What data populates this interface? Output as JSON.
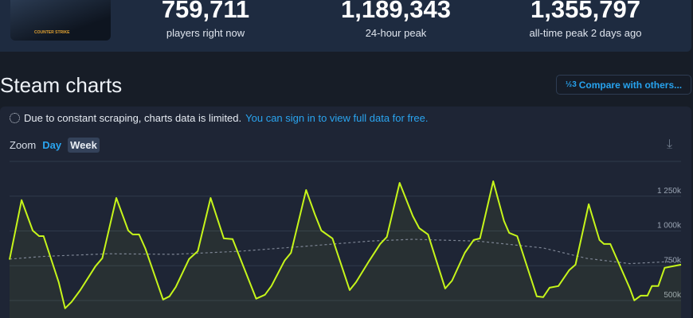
{
  "stats": [
    {
      "value": "759,711",
      "label": "players right now"
    },
    {
      "value": "1,189,343",
      "label": "24-hour peak"
    },
    {
      "value": "1,355,797",
      "label": "all-time peak 2 days ago"
    }
  ],
  "cover": {
    "logo_text": "COUNTER STRIKE"
  },
  "section_title": "Steam charts",
  "compare_button": {
    "icon": "fraction-icon",
    "icon_text": "½3",
    "label": "Compare with others..."
  },
  "notice": {
    "text": "Due to constant scraping, charts data is limited.",
    "link": "You can sign in to view full data for free."
  },
  "zoom": {
    "label": "Zoom",
    "options": [
      "Day",
      "Week"
    ],
    "selected": "Week"
  },
  "download_icon": "download-icon",
  "colors": {
    "line": "#c6f51a",
    "average": "#7d8594",
    "accent": "#2aa4ef"
  },
  "chart_data": {
    "type": "line",
    "ylim": [
      500,
      1500
    ],
    "yticks": [
      {
        "v": 1250,
        "label": "1 250k"
      },
      {
        "v": 1000,
        "label": "1 000k"
      },
      {
        "v": 750,
        "label": "750k"
      },
      {
        "v": 500,
        "label": "500k"
      }
    ],
    "grid": true,
    "series": [
      {
        "style": "solid",
        "points": [
          [
            0,
            794
          ],
          [
            3,
            1222
          ],
          [
            5.8,
            1003
          ],
          [
            7.4,
            963
          ],
          [
            8.5,
            963
          ],
          [
            12.3,
            632
          ],
          [
            13.9,
            444
          ],
          [
            15.5,
            490
          ],
          [
            17.7,
            575
          ],
          [
            21.5,
            747
          ],
          [
            23.2,
            804
          ],
          [
            26.7,
            1237
          ],
          [
            29.7,
            1003
          ],
          [
            30.8,
            975
          ],
          [
            32.4,
            975
          ],
          [
            34,
            872
          ],
          [
            38.4,
            507
          ],
          [
            40,
            530
          ],
          [
            41.6,
            598
          ],
          [
            44.9,
            798
          ],
          [
            47.1,
            855
          ],
          [
            50.3,
            1237
          ],
          [
            53.6,
            946
          ],
          [
            55.8,
            941
          ],
          [
            61.7,
            513
          ],
          [
            63.9,
            541
          ],
          [
            65.5,
            604
          ],
          [
            68.8,
            786
          ],
          [
            70.4,
            843
          ],
          [
            74.2,
            1294
          ],
          [
            76.4,
            1118
          ],
          [
            78,
            1003
          ],
          [
            80.8,
            946
          ],
          [
            85.1,
            575
          ],
          [
            86.7,
            632
          ],
          [
            90,
            786
          ],
          [
            92.7,
            906
          ],
          [
            94.4,
            958
          ],
          [
            97.6,
            1346
          ],
          [
            100.9,
            1106
          ],
          [
            102.5,
            1020
          ],
          [
            104.7,
            975
          ],
          [
            109,
            586
          ],
          [
            110.7,
            643
          ],
          [
            113.9,
            843
          ],
          [
            116.1,
            935
          ],
          [
            117.7,
            946
          ],
          [
            121,
            1357
          ],
          [
            123.7,
            1072
          ],
          [
            125,
            986
          ],
          [
            127,
            963
          ],
          [
            131.9,
            530
          ],
          [
            133.5,
            524
          ],
          [
            135.1,
            592
          ],
          [
            137.3,
            604
          ],
          [
            140,
            718
          ],
          [
            141.6,
            758
          ],
          [
            144.9,
            1192
          ],
          [
            147.6,
            935
          ],
          [
            148.7,
            906
          ],
          [
            150.3,
            906
          ],
          [
            155.2,
            586
          ],
          [
            156.3,
            501
          ],
          [
            157.9,
            535
          ],
          [
            159.6,
            535
          ],
          [
            160.7,
            604
          ],
          [
            162.3,
            604
          ],
          [
            163.9,
            735
          ],
          [
            168,
            758
          ]
        ]
      },
      {
        "style": "dashed",
        "points": [
          [
            0,
            798
          ],
          [
            8.5,
            817
          ],
          [
            24.8,
            836
          ],
          [
            41.1,
            832
          ],
          [
            57.4,
            854
          ],
          [
            73.7,
            889
          ],
          [
            90,
            927
          ],
          [
            100.9,
            940
          ],
          [
            117.2,
            927
          ],
          [
            133.5,
            878
          ],
          [
            144.4,
            803
          ],
          [
            155.2,
            765
          ],
          [
            168,
            784
          ]
        ]
      }
    ]
  }
}
